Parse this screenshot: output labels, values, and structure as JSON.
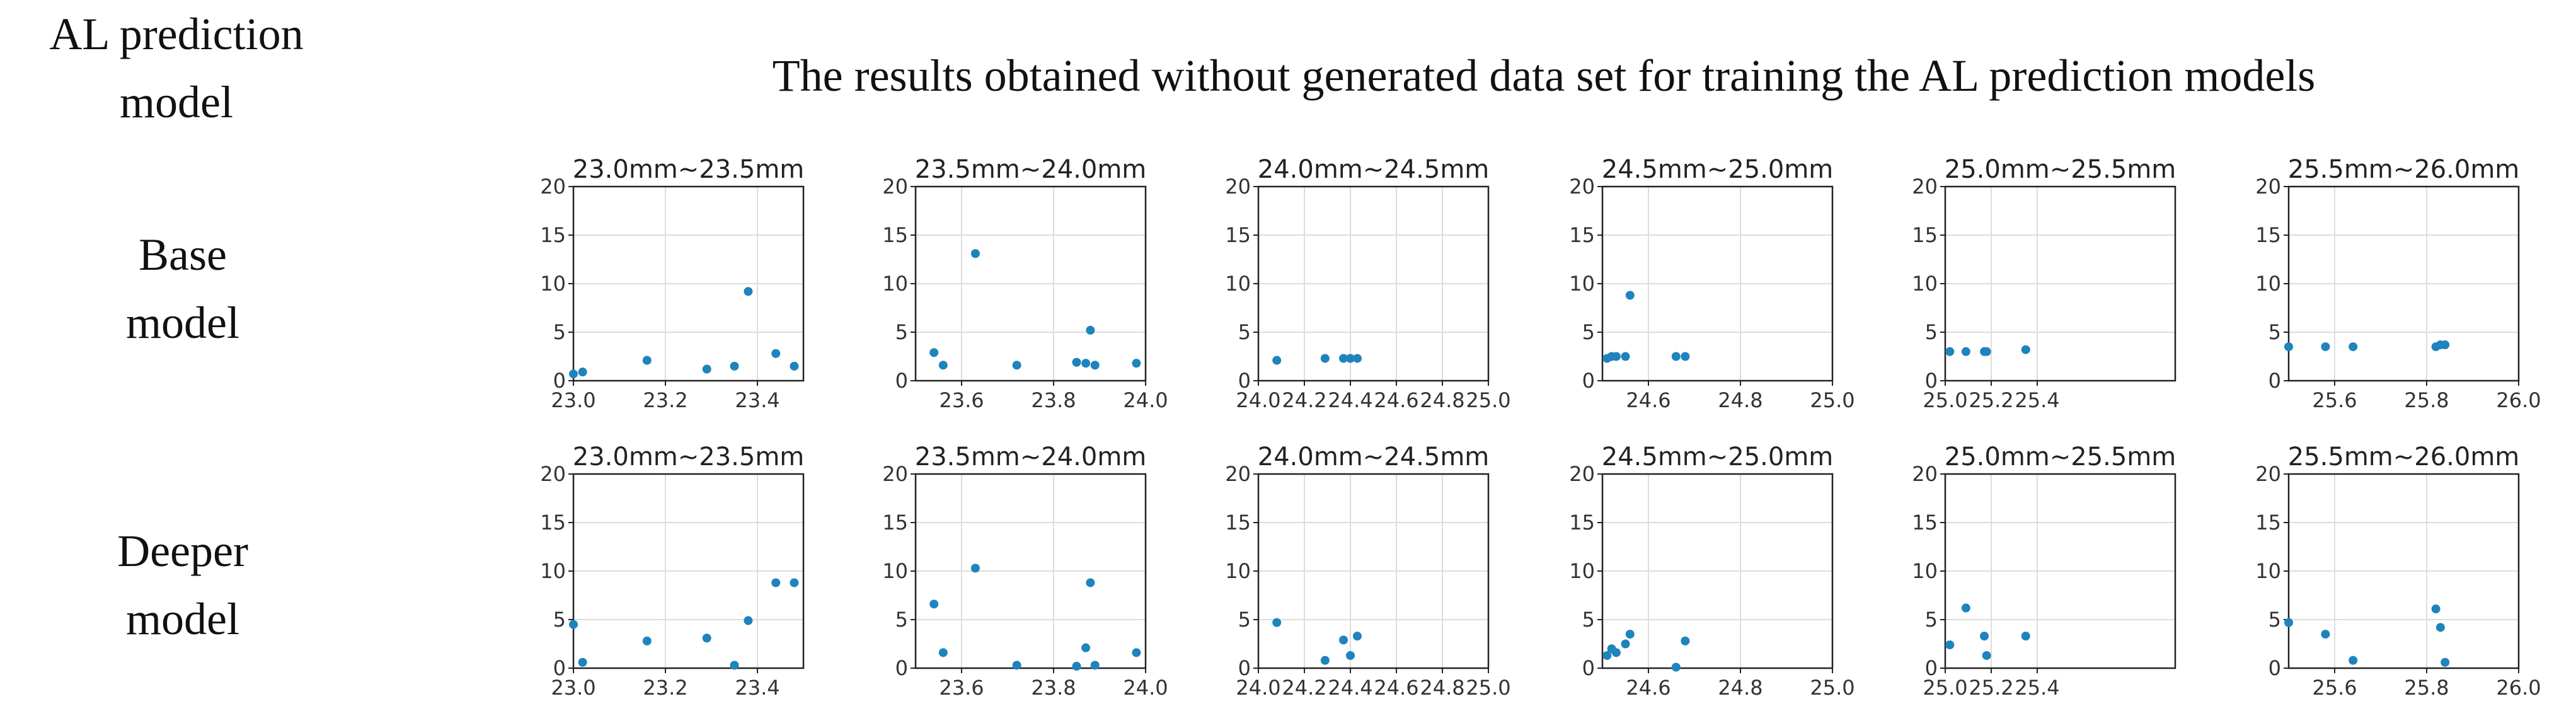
{
  "header": {
    "title": "The results obtained without generated data set for training the AL prediction models",
    "corner_label": [
      "AL prediction",
      "model"
    ]
  },
  "rows": [
    {
      "label": [
        "Base",
        "model"
      ]
    },
    {
      "label": [
        "Deeper",
        "model"
      ]
    }
  ],
  "colors": {
    "point": "#1f83bd",
    "axis": "#222222",
    "grid": "#dddddd"
  },
  "chart_data": [
    {
      "type": "scatter",
      "title": "23.0mm~23.5mm",
      "xlim": [
        23.0,
        23.5
      ],
      "ylim": [
        0,
        20
      ],
      "xticks": [
        "23.0",
        "23.2",
        "23.4"
      ],
      "yticks": [
        "0",
        "5",
        "10",
        "15",
        "20"
      ],
      "x": [
        23.0,
        23.02,
        23.16,
        23.29,
        23.35,
        23.38,
        23.44,
        23.48
      ],
      "y": [
        0.7,
        0.9,
        2.1,
        1.2,
        1.5,
        9.2,
        2.8,
        1.5
      ]
    },
    {
      "type": "scatter",
      "title": "23.5mm~24.0mm",
      "xlim": [
        23.5,
        24.0
      ],
      "ylim": [
        0,
        20
      ],
      "xticks": [
        "23.6",
        "23.8",
        "24.0"
      ],
      "yticks": [
        "0",
        "5",
        "10",
        "15",
        "20"
      ],
      "x": [
        23.54,
        23.56,
        23.63,
        23.72,
        23.85,
        23.87,
        23.88,
        23.89,
        23.98
      ],
      "y": [
        2.9,
        1.6,
        13.1,
        1.6,
        1.9,
        1.8,
        5.2,
        1.6,
        1.8
      ]
    },
    {
      "type": "scatter",
      "title": "24.0mm~24.5mm",
      "xlim": [
        24.0,
        25.0
      ],
      "ylim": [
        0,
        20
      ],
      "xticks": [
        "24.0",
        "24.2",
        "24.4",
        "24.6",
        "24.8",
        "25.0"
      ],
      "yticks": [
        "0",
        "5",
        "10",
        "15",
        "20"
      ],
      "x": [
        24.08,
        24.29,
        24.37,
        24.4,
        24.43
      ],
      "y": [
        2.1,
        2.3,
        2.3,
        2.3,
        2.3
      ]
    },
    {
      "type": "scatter",
      "title": "24.5mm~25.0mm",
      "xlim": [
        24.5,
        25.0
      ],
      "ylim": [
        0,
        20
      ],
      "xticks": [
        "24.6",
        "24.8",
        "25.0"
      ],
      "yticks": [
        "0",
        "5",
        "10",
        "15",
        "20"
      ],
      "x": [
        24.51,
        24.52,
        24.53,
        24.55,
        24.56,
        24.66,
        24.68
      ],
      "y": [
        2.3,
        2.5,
        2.5,
        2.5,
        8.8,
        2.5,
        2.5
      ]
    },
    {
      "type": "scatter",
      "title": "25.0mm~25.5mm",
      "xlim": [
        25.0,
        26.0
      ],
      "ylim": [
        0,
        20
      ],
      "xticks": [
        "25.0",
        "25.2",
        "25.4"
      ],
      "yticks": [
        "0",
        "5",
        "10",
        "15",
        "20"
      ],
      "x": [
        25.02,
        25.09,
        25.17,
        25.18,
        25.35
      ],
      "y": [
        3.0,
        3.0,
        3.0,
        3.0,
        3.2
      ]
    },
    {
      "type": "scatter",
      "title": "25.5mm~26.0mm",
      "xlim": [
        25.5,
        26.0
      ],
      "ylim": [
        0,
        20
      ],
      "xticks": [
        "25.6",
        "25.8",
        "26.0"
      ],
      "yticks": [
        "0",
        "5",
        "10",
        "15",
        "20"
      ],
      "x": [
        25.5,
        25.58,
        25.64,
        25.82,
        25.83,
        25.84
      ],
      "y": [
        3.5,
        3.5,
        3.5,
        3.5,
        3.7,
        3.7
      ]
    },
    {
      "type": "scatter",
      "title": "23.0mm~23.5mm",
      "xlim": [
        23.0,
        23.5
      ],
      "ylim": [
        0,
        20
      ],
      "xticks": [
        "23.0",
        "23.2",
        "23.4"
      ],
      "yticks": [
        "0",
        "5",
        "10",
        "15",
        "20"
      ],
      "x": [
        23.0,
        23.02,
        23.16,
        23.29,
        23.35,
        23.38,
        23.44,
        23.48
      ],
      "y": [
        4.5,
        0.6,
        2.8,
        3.1,
        0.3,
        4.9,
        8.8,
        8.8
      ]
    },
    {
      "type": "scatter",
      "title": "23.5mm~24.0mm",
      "xlim": [
        23.5,
        24.0
      ],
      "ylim": [
        0,
        20
      ],
      "xticks": [
        "23.6",
        "23.8",
        "24.0"
      ],
      "yticks": [
        "0",
        "5",
        "10",
        "15",
        "20"
      ],
      "x": [
        23.54,
        23.56,
        23.63,
        23.72,
        23.85,
        23.87,
        23.88,
        23.89,
        23.98
      ],
      "y": [
        6.6,
        1.6,
        10.3,
        0.3,
        0.2,
        2.1,
        8.8,
        0.3,
        1.6
      ]
    },
    {
      "type": "scatter",
      "title": "24.0mm~24.5mm",
      "xlim": [
        24.0,
        25.0
      ],
      "ylim": [
        0,
        20
      ],
      "xticks": [
        "24.0",
        "24.2",
        "24.4",
        "24.6",
        "24.8",
        "25.0"
      ],
      "yticks": [
        "0",
        "5",
        "10",
        "15",
        "20"
      ],
      "x": [
        24.08,
        24.29,
        24.37,
        24.4,
        24.43
      ],
      "y": [
        4.7,
        0.8,
        2.9,
        1.3,
        3.3
      ]
    },
    {
      "type": "scatter",
      "title": "24.5mm~25.0mm",
      "xlim": [
        24.5,
        25.0
      ],
      "ylim": [
        0,
        20
      ],
      "xticks": [
        "24.6",
        "24.8",
        "25.0"
      ],
      "yticks": [
        "0",
        "5",
        "10",
        "15",
        "20"
      ],
      "x": [
        24.51,
        24.52,
        24.53,
        24.55,
        24.56,
        24.66,
        24.68
      ],
      "y": [
        1.3,
        2.0,
        1.6,
        2.5,
        3.5,
        0.1,
        2.8
      ]
    },
    {
      "type": "scatter",
      "title": "25.0mm~25.5mm",
      "xlim": [
        25.0,
        26.0
      ],
      "ylim": [
        0,
        20
      ],
      "xticks": [
        "25.0",
        "25.2",
        "25.4"
      ],
      "yticks": [
        "0",
        "5",
        "10",
        "15",
        "20"
      ],
      "x": [
        25.02,
        25.09,
        25.17,
        25.18,
        25.35
      ],
      "y": [
        2.4,
        6.2,
        3.3,
        1.3,
        3.3
      ]
    },
    {
      "type": "scatter",
      "title": "25.5mm~26.0mm",
      "xlim": [
        25.5,
        26.0
      ],
      "ylim": [
        0,
        20
      ],
      "xticks": [
        "25.6",
        "25.8",
        "26.0"
      ],
      "yticks": [
        "0",
        "5",
        "10",
        "15",
        "20"
      ],
      "x": [
        25.5,
        25.58,
        25.64,
        25.82,
        25.83,
        25.84
      ],
      "y": [
        4.7,
        3.5,
        0.8,
        6.1,
        4.2,
        0.6
      ]
    }
  ]
}
